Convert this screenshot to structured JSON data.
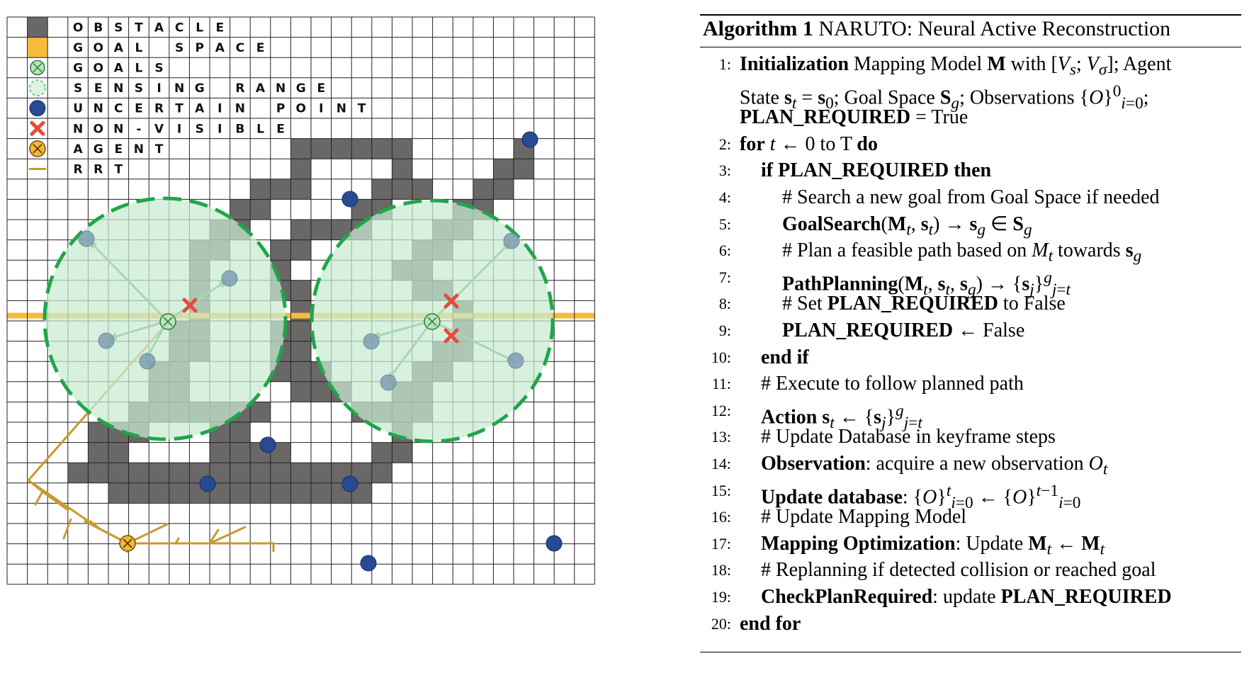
{
  "legend": [
    {
      "symbol": "obstacle",
      "label": "OBSTACLE",
      "icon": "obstacle-swatch-icon"
    },
    {
      "symbol": "goal-space",
      "label": "GOAL SPACE",
      "icon": "goal-space-swatch-icon"
    },
    {
      "symbol": "goal",
      "label": "GOALS",
      "icon": "goal-icon"
    },
    {
      "symbol": "sensing",
      "label": "SENSING RANGE",
      "icon": "sensing-range-icon"
    },
    {
      "symbol": "uncertain",
      "label": "UNCERTAIN POINT",
      "icon": "uncertain-point-icon"
    },
    {
      "symbol": "nonvisible",
      "label": "NON-VISIBLE",
      "icon": "non-visible-icon"
    },
    {
      "symbol": "agent",
      "label": "AGENT",
      "icon": "agent-icon"
    },
    {
      "symbol": "rrt",
      "label": "RRT",
      "icon": "rrt-line-icon"
    }
  ],
  "colors": {
    "obstacle": "#6a6767",
    "goal_space": "#f7bb3c",
    "sensing_fill": "#c9ebd2",
    "sensing_stroke": "#1fa64a",
    "uncertain": "#274a92",
    "nonvisible": "#e84a3c",
    "agent": "#f3b734",
    "rrt": "#c79a2e",
    "grid_line": "#222222"
  },
  "algorithm": {
    "title_bold": "Algorithm 1",
    "title_rest": " NARUTO: Neural Active Reconstruction",
    "lines": [
      {
        "n": "1:",
        "html": "<b>Initialization</b> Mapping Model <b>M</b> with [<i>V<sub>s</sub></i>; <i>V<sub>σ</sub></i>]; Agent"
      },
      {
        "n": "",
        "html": "State <b>s</b><sub><i>t</i></sub> = <b>s</b><sub>0</sub>; Goal Space <b>S</b><sub><i>g</i></sub>; Observations {<i>O</i>}<sup>0</sup><sub><i>i</i>=0</sub>;"
      },
      {
        "n": "",
        "html": "<b>PLAN_REQUIRED</b> = True"
      },
      {
        "n": "2:",
        "html": "<b>for</b> <i>t</i> ← 0 to T <b>do</b>"
      },
      {
        "n": "3:",
        "html": "<b>if PLAN_REQUIRED then</b>"
      },
      {
        "n": "4:",
        "html": "# Search a new goal from Goal Space if needed"
      },
      {
        "n": "5:",
        "html": "<b>GoalSearch</b>(<b>M</b><sub><i>t</i></sub>, <b>s</b><sub><i>t</i></sub>) → <b>s</b><sub><i>g</i></sub> ∈ <b>S</b><sub><i>g</i></sub>"
      },
      {
        "n": "6:",
        "html": "# Plan a feasible path based on <i>M<sub>t</sub></i> towards <b>s</b><sub><i>g</i></sub>"
      },
      {
        "n": "7:",
        "html": "<b>PathPlanning</b>(<b>M</b><sub><i>t</i></sub>, <b>s</b><sub><i>t</i></sub>, <b>s</b><sub><i>g</i></sub>) → {<b>s</b><sub><i>j</i></sub>}<sup><i>g</i></sup><sub><i>j</i>=<i>t</i></sub>"
      },
      {
        "n": "8:",
        "html": "# Set <b>PLAN_REQUIRED</b> to False"
      },
      {
        "n": "9:",
        "html": "<b>PLAN_REQUIRED</b> ← False"
      },
      {
        "n": "10:",
        "html": "<b>end if</b>"
      },
      {
        "n": "11:",
        "html": "# Execute to follow planned path"
      },
      {
        "n": "12:",
        "html": "<b>Action</b> <b>s</b><sub><i>t</i></sub> ← {<b>s</b><sub><i>j</i></sub>}<sup><i>g</i></sup><sub><i>j</i>=<i>t</i></sub>"
      },
      {
        "n": "13:",
        "html": "# Update Database in keyframe steps"
      },
      {
        "n": "14:",
        "html": "<b>Observation</b>: acquire a new observation <i>O<sub>t</sub></i>"
      },
      {
        "n": "15:",
        "html": "<b>Update database</b>: {<i>O</i>}<sup><i>t</i></sup><sub><i>i</i>=0</sub> ← {<i>O</i>}<sup><i>t</i>−1</sup><sub><i>i</i>=0</sub>"
      },
      {
        "n": "16:",
        "html": "# Update Mapping Model"
      },
      {
        "n": "17:",
        "html": "<b>Mapping Optimization</b>: Update <b>M</b><sub><i>t</i></sub> ← <b>M</b><sub><i>t</i></sub>"
      },
      {
        "n": "18:",
        "html": "# Replanning if detected collision or reached goal"
      },
      {
        "n": "19:",
        "html": "<b>CheckPlanRequired</b>: update <b>PLAN_REQUIRED</b>"
      },
      {
        "n": "20:",
        "html": "<b>end for</b>"
      }
    ]
  }
}
